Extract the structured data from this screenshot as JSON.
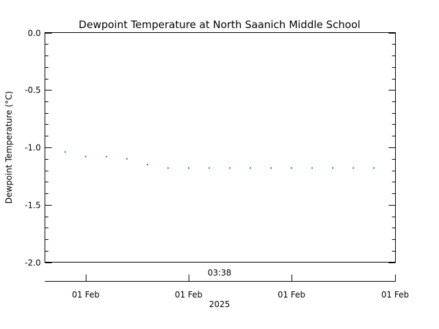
{
  "chart_data": {
    "type": "scatter",
    "title": "Dewpoint Temperature at North Saanich Middle School",
    "ylabel": "Dewpoint Temperature (°C)",
    "ylim": [
      -2.0,
      0.0
    ],
    "yticks": [
      "0.0",
      "-0.5",
      "-1.0",
      "-1.5",
      "-2.0"
    ],
    "ytick_values": [
      0.0,
      -0.5,
      -1.0,
      -1.5,
      -2.0
    ],
    "top_x_label": "03:38",
    "x_tick_labels": [
      "01 Feb",
      "01 Feb",
      "01 Feb",
      "01 Feb"
    ],
    "x_year_label": "2025",
    "grid": false,
    "point_color": "#1f77d4",
    "series": [
      {
        "values": [
          -1.04,
          -1.08,
          -1.08,
          -1.1,
          -1.15,
          -1.18,
          -1.18,
          -1.18,
          -1.18,
          -1.18,
          -1.18,
          -1.18,
          -1.18,
          -1.18,
          -1.18,
          -1.18
        ]
      }
    ]
  }
}
